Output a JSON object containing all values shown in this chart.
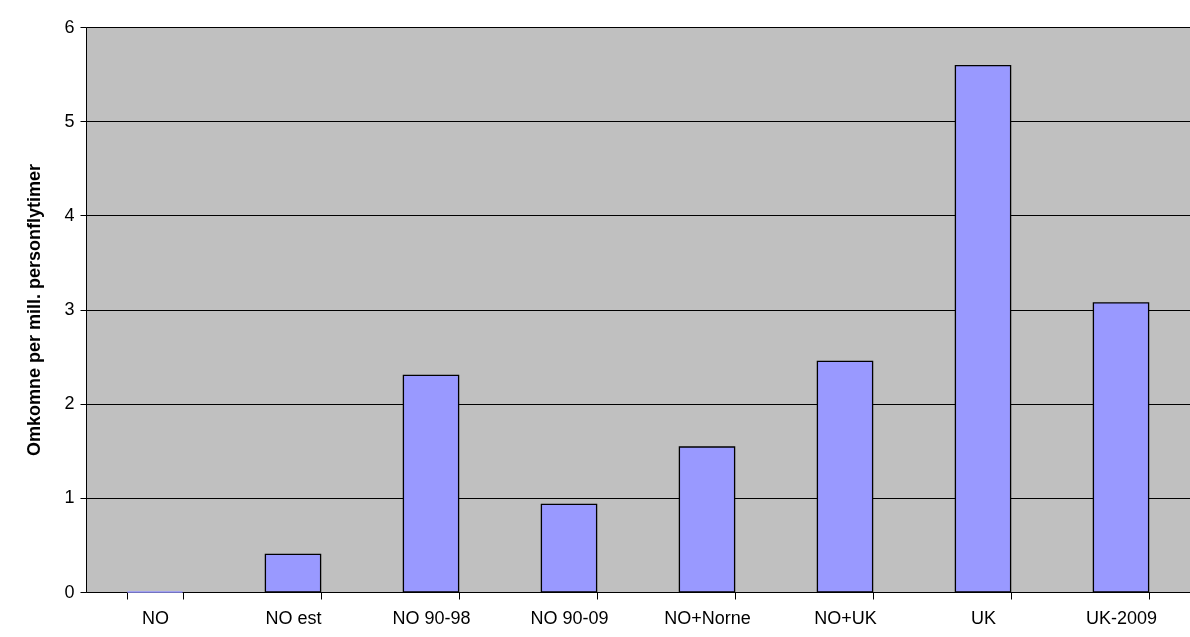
{
  "chart_data": {
    "type": "bar",
    "ylabel": "Omkomne per mill. personflytimer",
    "categories": [
      "NO",
      "NO est",
      "NO 90-98",
      "NO 90-09",
      "NO+Norne",
      "NO+UK",
      "UK",
      "UK-2009"
    ],
    "values": [
      0,
      0.4,
      2.3,
      0.93,
      1.54,
      2.45,
      5.59,
      3.07
    ],
    "color": "#9999ff",
    "ylim": [
      0,
      6
    ],
    "yticks": [
      0,
      1,
      2,
      3,
      4,
      5,
      6
    ],
    "grid": "y"
  }
}
